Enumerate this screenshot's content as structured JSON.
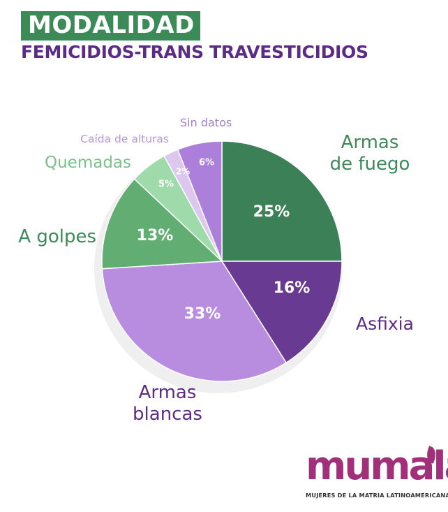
{
  "header": {
    "title": "MODALIDAD",
    "subtitle": "FEMICIDIOS-TRANS TRAVESTICIDIOS"
  },
  "chart_data": {
    "type": "pie",
    "slices": [
      {
        "label": "Armas de fuego",
        "value": 25,
        "value_label": "25%",
        "color": "#3c8057",
        "text_color": "#3c8a58"
      },
      {
        "label": "Asfixia",
        "value": 16,
        "value_label": "16%",
        "color": "#693a92",
        "text_color": "#5b2b86"
      },
      {
        "label": "Armas blancas",
        "value": 33,
        "value_label": "33%",
        "color": "#b88de0",
        "text_color": "#5b2b86"
      },
      {
        "label": "A golpes",
        "value": 13,
        "value_label": "13%",
        "color": "#61ad72",
        "text_color": "#3c8a58"
      },
      {
        "label": "Quemadas",
        "value": 5,
        "value_label": "5%",
        "color": "#9fdaab",
        "text_color": "#7dbf8c"
      },
      {
        "label": "Caída de alturas",
        "value": 2,
        "value_label": "2%",
        "color": "#dcc7ef",
        "text_color": "#b596d6"
      },
      {
        "label": "Sin datos",
        "value": 6,
        "value_label": "6%",
        "color": "#ab7fda",
        "text_color": "#a47fcf"
      }
    ]
  },
  "logo": {
    "word": "mumala",
    "tagline": "MUJERES DE LA MATRIA LATINOAMERICANA",
    "color": "#a0307a"
  }
}
